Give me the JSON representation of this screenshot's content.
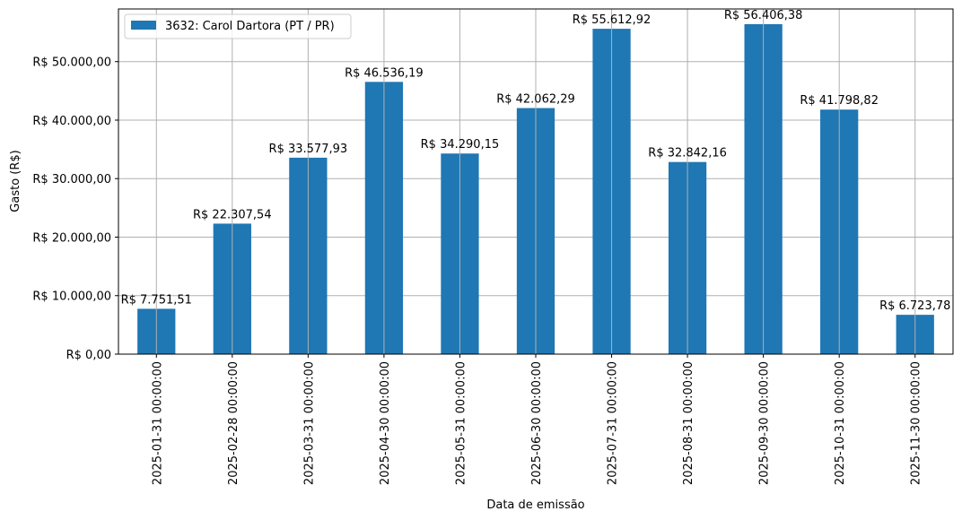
{
  "chart_data": {
    "type": "bar",
    "title": "",
    "xlabel": "Data de emissão",
    "ylabel": "Gasto (R$)",
    "ylim": [
      0,
      59000
    ],
    "grid": true,
    "legend_position": "upper left",
    "series": [
      {
        "name": "3632: Carol Dartora (PT / PR)",
        "color": "#1f77b4",
        "values": [
          7751.51,
          22307.54,
          33577.93,
          46536.19,
          34290.15,
          42062.29,
          55612.92,
          32842.16,
          56406.38,
          41798.82,
          6723.78
        ],
        "value_labels": [
          "R$ 7.751,51",
          "R$ 22.307,54",
          "R$ 33.577,93",
          "R$ 46.536,19",
          "R$ 34.290,15",
          "R$ 42.062,29",
          "R$ 55.612,92",
          "R$ 32.842,16",
          "R$ 56.406,38",
          "R$ 41.798,82",
          "R$ 6.723,78"
        ]
      }
    ],
    "categories": [
      "2025-01-31 00:00:00",
      "2025-02-28 00:00:00",
      "2025-03-31 00:00:00",
      "2025-04-30 00:00:00",
      "2025-05-31 00:00:00",
      "2025-06-30 00:00:00",
      "2025-07-31 00:00:00",
      "2025-08-31 00:00:00",
      "2025-09-30 00:00:00",
      "2025-10-31 00:00:00",
      "2025-11-30 00:00:00"
    ],
    "yticks": [
      0,
      10000,
      20000,
      30000,
      40000,
      50000
    ],
    "ytick_labels": [
      "R$ 0,00",
      "R$ 10.000,00",
      "R$ 20.000,00",
      "R$ 30.000,00",
      "R$ 40.000,00",
      "R$ 50.000,00"
    ]
  }
}
